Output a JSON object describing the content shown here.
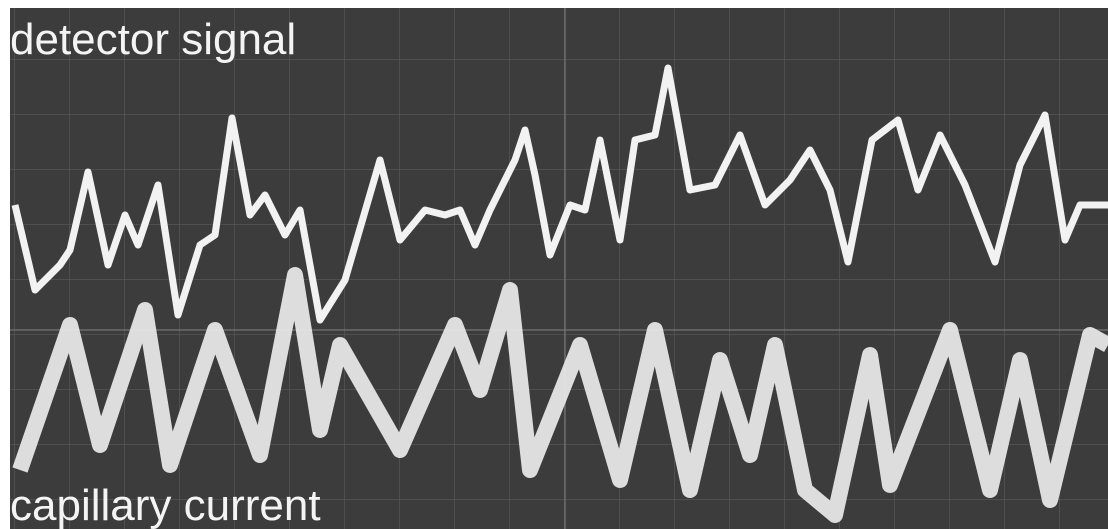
{
  "labels": {
    "top": "detector signal",
    "bottom": "capillary current"
  }
}
